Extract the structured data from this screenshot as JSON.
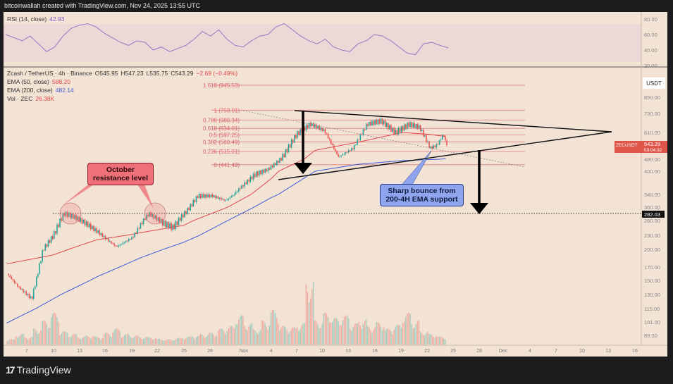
{
  "header": {
    "credit": "bitcoinwallah created with TradingView.com, Nov 24, 2025 13:55 UTC"
  },
  "rsi": {
    "label": "RSI (14, close)",
    "value": "42.93",
    "ticks": [
      "80.00",
      "60.00",
      "40.00",
      "20.00"
    ],
    "points": [
      60,
      56,
      52,
      58,
      48,
      38,
      44,
      58,
      68,
      72,
      74,
      70,
      62,
      56,
      50,
      46,
      52,
      50,
      40,
      44,
      38,
      42,
      46,
      54,
      64,
      58,
      66,
      54,
      46,
      44,
      52,
      58,
      60,
      70,
      74,
      66,
      58,
      52,
      48,
      54,
      44,
      40,
      38,
      48,
      52,
      60,
      58,
      52,
      44,
      36,
      34,
      48,
      50,
      46,
      42.93
    ]
  },
  "legend": {
    "symbol": "Zcash / TetherUS · 4h · Binance",
    "open": "O545.95",
    "high": "H547.23",
    "low": "L535.75",
    "close": "C543.29",
    "change": "−2.69 (−0.49%)",
    "ema50_label": "EMA (50, close)",
    "ema50_value": "588.20",
    "ema200_label": "EMA (200, close)",
    "ema200_value": "482.14",
    "vol_label": "Vol · ZEC",
    "vol_value": "26.38K"
  },
  "price_axis": {
    "currency": "USDT",
    "ticks": [
      "850.00",
      "730.00",
      "610.00",
      "480.00",
      "400.00",
      "340.00",
      "300.00",
      "260.00",
      "230.00",
      "200.00",
      "170.00",
      "150.00",
      "130.00",
      "115.00",
      "101.00",
      "89.00"
    ],
    "last_price_symbol": "ZECUSDT",
    "last_price": "543.29",
    "countdown": "03:04:32",
    "level_label": "282.03"
  },
  "time_axis": {
    "ticks": [
      "7",
      "10",
      "13",
      "16",
      "19",
      "22",
      "25",
      "28",
      "Nov",
      "4",
      "7",
      "10",
      "13",
      "16",
      "19",
      "22",
      "25",
      "28",
      "Dec",
      "4",
      "7",
      "10",
      "13",
      "16"
    ]
  },
  "fib_levels": [
    {
      "label": "1.618 (945.53)",
      "price": 945.53
    },
    {
      "label": "1 (753.01)",
      "price": 753.01
    },
    {
      "label": "0.786 (686.34)",
      "price": 686.34
    },
    {
      "label": "0.618 (634.01)",
      "price": 634.01
    },
    {
      "label": "0.5 (597.25)",
      "price": 597.25
    },
    {
      "label": "0.382 (560.49)",
      "price": 560.49
    },
    {
      "label": "0.236 (515.01)",
      "price": 515.01
    },
    {
      "label": "0 (441.49)",
      "price": 441.49
    }
  ],
  "annotations": {
    "october": "October resistance level",
    "bounce": "Sharp bounce from 200-4H EMA support"
  },
  "colors": {
    "up": "#26a69a",
    "down": "#ef5350",
    "ema50": "#e0474c",
    "ema200": "#3f5bd8",
    "fib": "#d9626a",
    "background": "#f3e3d5"
  },
  "chart_data": {
    "type": "candlestick",
    "title": "Zcash / TetherUS · 4h · Binance",
    "close_path": [
      [
        "Oct 4.7",
        160
      ],
      [
        "Oct 6",
        140
      ],
      [
        "Oct 7.5",
        125
      ],
      [
        "Oct 8.8",
        200
      ],
      [
        "Oct 10",
        230
      ],
      [
        "Oct 11.2",
        280
      ],
      [
        "Oct 12.4",
        270
      ],
      [
        "Oct 13.6",
        255
      ],
      [
        "Oct 15.2",
        235
      ],
      [
        "Oct 17.2",
        205
      ],
      [
        "Oct 19",
        225
      ],
      [
        "Oct 20.9",
        280
      ],
      [
        "Oct 22.5",
        255
      ],
      [
        "Oct 23.7",
        245
      ],
      [
        "Oct 25.3",
        290
      ],
      [
        "Oct 26.5",
        335
      ],
      [
        "Oct 28.2",
        335
      ],
      [
        "Oct 29.7",
        320
      ],
      [
        "Oct 31.3",
        355
      ],
      [
        "Nov 2",
        390
      ],
      [
        "Nov 3.5",
        410
      ],
      [
        "Nov 5.2",
        490
      ],
      [
        "Nov 6.8",
        600
      ],
      [
        "Nov 8.4",
        660
      ],
      [
        "Nov 10",
        620
      ],
      [
        "Nov 11.6",
        490
      ],
      [
        "Nov 13.3",
        530
      ],
      [
        "Nov 14.9",
        660
      ],
      [
        "Nov 16.5",
        680
      ],
      [
        "Nov 18.1",
        610
      ],
      [
        "Nov 19.7",
        660
      ],
      [
        "Nov 20.9",
        640
      ],
      [
        "Nov 22.1",
        530
      ],
      [
        "Nov 22.9",
        545
      ],
      [
        "Nov 23.6",
        600
      ],
      [
        "Nov 24",
        543.29
      ]
    ],
    "ema50_path": [
      [
        "Oct 4.7",
        175
      ],
      [
        "Oct 10",
        190
      ],
      [
        "Oct 15",
        220
      ],
      [
        "Oct 20",
        235
      ],
      [
        "Oct 25",
        250
      ],
      [
        "Oct 30",
        300
      ],
      [
        "Nov 4",
        380
      ],
      [
        "Nov 9",
        520
      ],
      [
        "Nov 14",
        560
      ],
      [
        "Nov 19",
        610
      ],
      [
        "Nov 22",
        600
      ],
      [
        "Nov 24",
        588.2
      ]
    ],
    "ema200_path": [
      [
        "Oct 4.7",
        100
      ],
      [
        "Oct 10",
        125
      ],
      [
        "Oct 15",
        155
      ],
      [
        "Oct 20",
        185
      ],
      [
        "Oct 25",
        215
      ],
      [
        "Oct 30",
        260
      ],
      [
        "Nov 4",
        330
      ],
      [
        "Nov 9",
        400
      ],
      [
        "Nov 14",
        445
      ],
      [
        "Nov 19",
        470
      ],
      [
        "Nov 24",
        482.14
      ]
    ],
    "volume_k": [
      20,
      40,
      30,
      60,
      90,
      120,
      50,
      40,
      30,
      35,
      30,
      45,
      60,
      40,
      35,
      30,
      28,
      22,
      20,
      25,
      30,
      35,
      40,
      45,
      60,
      70,
      110,
      80,
      60,
      90,
      130,
      70,
      65,
      80,
      240,
      90,
      120,
      100,
      110,
      80,
      95,
      70,
      85,
      60,
      75,
      120,
      90,
      50,
      40,
      30
    ],
    "ylim": [
      80,
      1000
    ],
    "log_scale": true,
    "grid": false
  }
}
